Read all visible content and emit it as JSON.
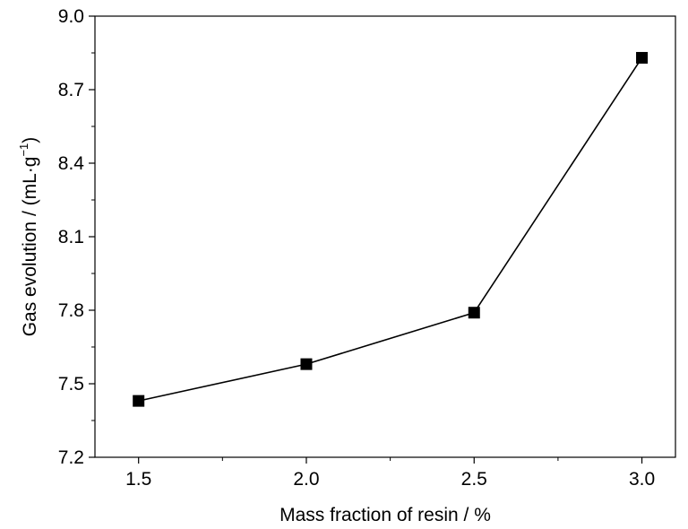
{
  "chart_data": {
    "type": "line",
    "x": [
      1.5,
      2.0,
      2.5,
      3.0
    ],
    "series": [
      {
        "values": [
          7.43,
          7.58,
          7.79,
          8.83
        ]
      }
    ],
    "xlabel": "Mass fraction of resin / %",
    "ylabel": {
      "base": "Gas evolution / (mL·g",
      "sup": "−1",
      "close": ")"
    },
    "xlim": [
      1.37,
      3.1
    ],
    "ylim": [
      7.2,
      9.0
    ],
    "xticks": [
      1.5,
      2.0,
      2.5,
      3.0
    ],
    "xtick_labels": [
      "1.5",
      "2.0",
      "2.5",
      "3.0"
    ],
    "yticks": [
      7.2,
      7.5,
      7.8,
      8.1,
      8.4,
      8.7,
      9.0
    ],
    "ytick_labels": [
      "7.2",
      "7.5",
      "7.8",
      "8.1",
      "8.4",
      "8.7",
      "9.0"
    ],
    "marker": "square",
    "line_color": "#000000",
    "marker_color": "#000000",
    "grid": false,
    "legend": "none"
  }
}
